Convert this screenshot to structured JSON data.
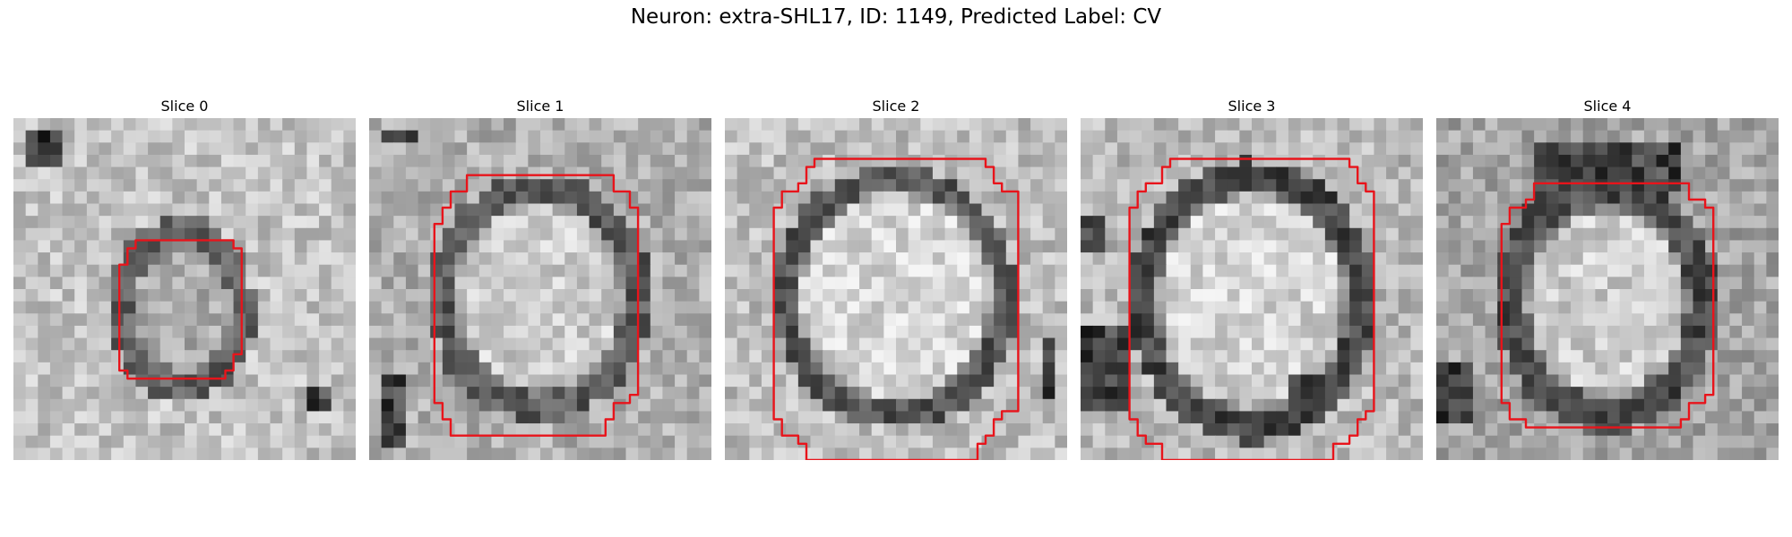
{
  "figure": {
    "title": "Neuron: extra-SHL17, ID: 1149, Predicted Label: CV"
  },
  "panels": [
    {
      "title": "Slice 0"
    },
    {
      "title": "Slice 1"
    },
    {
      "title": "Slice 2"
    },
    {
      "title": "Slice 3"
    },
    {
      "title": "Slice 4"
    }
  ],
  "colors": {
    "contour": "#e8141b",
    "background": "#ffffff"
  }
}
